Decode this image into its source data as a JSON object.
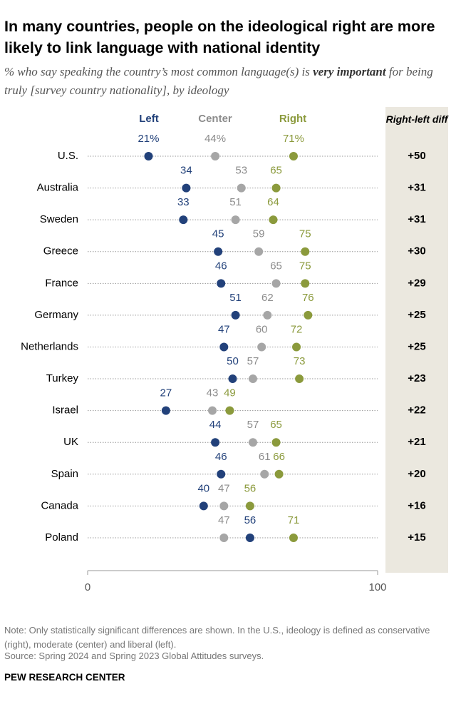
{
  "chart_data": {
    "type": "dot",
    "title": "In many countries, people on the ideological right are more likely to link language with national identity",
    "subtitle": [
      "% who say speaking the country’s most common language(s) is ",
      "very important",
      " for being truly [survey country nationality], by ideology"
    ],
    "categories": [
      "U.S.",
      "Australia",
      "Sweden",
      "Greece",
      "France",
      "Germany",
      "Netherlands",
      "Turkey",
      "Israel",
      "UK",
      "Spain",
      "Canada",
      "Poland"
    ],
    "series": [
      {
        "name": "Left",
        "color": "#22417a",
        "values": [
          21,
          34,
          33,
          45,
          46,
          51,
          47,
          50,
          27,
          44,
          46,
          40,
          56
        ],
        "value_labels": [
          "21%",
          "34",
          "33",
          "45",
          "46",
          "51",
          "47",
          "50",
          "27",
          "44",
          "46",
          "40",
          "56"
        ]
      },
      {
        "name": "Center",
        "color": "#a6a6a6",
        "values": [
          44,
          53,
          51,
          59,
          65,
          62,
          60,
          57,
          43,
          57,
          61,
          47,
          47
        ],
        "value_labels": [
          "44%",
          "53",
          "51",
          "59",
          "65",
          "62",
          "60",
          "57",
          "43",
          "57",
          "61",
          "47",
          "47"
        ]
      },
      {
        "name": "Right",
        "color": "#8b9a3c",
        "values": [
          71,
          65,
          64,
          75,
          75,
          76,
          72,
          73,
          49,
          65,
          66,
          56,
          71
        ],
        "value_labels": [
          "71%",
          "65",
          "64",
          "75",
          "75",
          "76",
          "72",
          "73",
          "49",
          "65",
          "66",
          "56",
          "71"
        ]
      }
    ],
    "diff": {
      "title": "Right-left diff",
      "values": [
        50,
        31,
        31,
        30,
        29,
        25,
        25,
        23,
        22,
        21,
        20,
        16,
        15
      ],
      "value_labels": [
        "+50",
        "+31",
        "+31",
        "+30",
        "+29",
        "+25",
        "+25",
        "+23",
        "+22",
        "+21",
        "+20",
        "+16",
        "+15"
      ]
    },
    "xlim": [
      0,
      100
    ],
    "xticks": [
      0,
      100
    ],
    "note": "Note: Only statistically significant differences are shown. In the U.S., ideology is defined as conservative (right), moderate (center) and liberal (left).",
    "source": "Source: Spring 2024 and Spring 2023 Global Attitudes surveys.",
    "footer": "PEW RESEARCH CENTER"
  }
}
